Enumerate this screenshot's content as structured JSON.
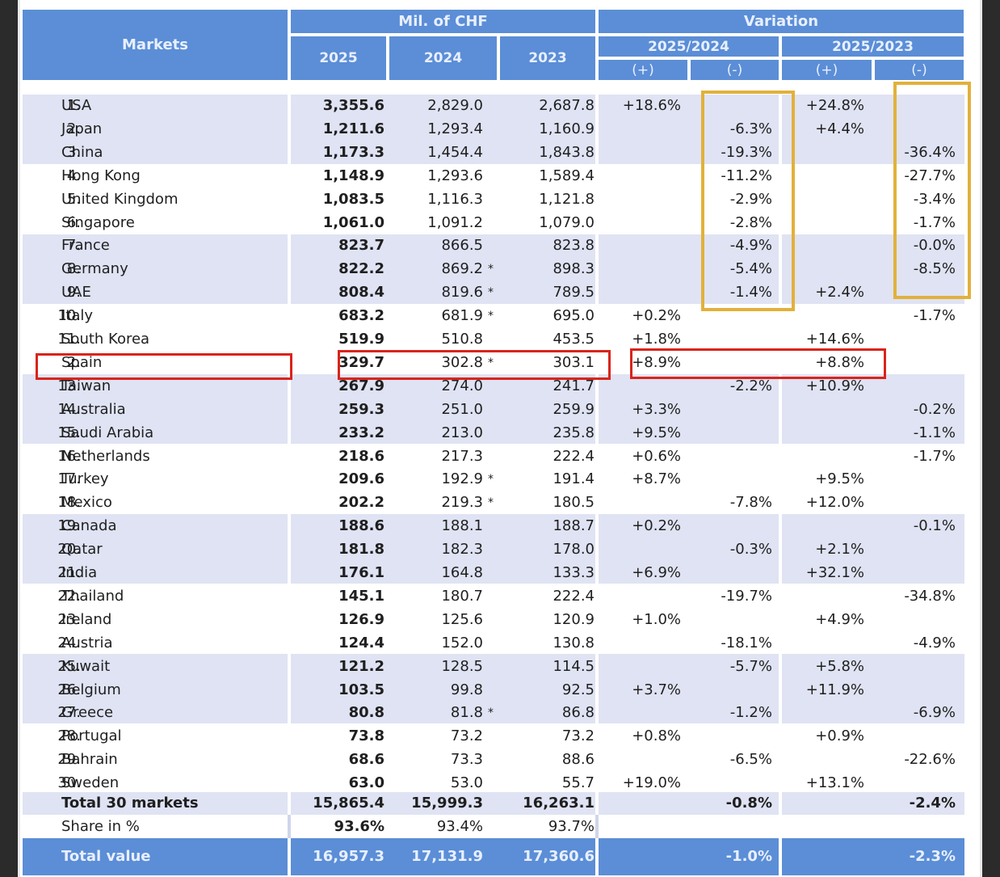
{
  "header": {
    "markets": "Markets",
    "mil_chf": "Mil. of CHF",
    "variation": "Variation",
    "years": [
      "2025",
      "2024",
      "2023"
    ],
    "period_1": "2025/2024",
    "period_2": "2025/2023",
    "plus": "(+)",
    "minus": "(-)"
  },
  "chart_data": {
    "type": "table",
    "title": "Markets — Mil. of CHF",
    "columns": [
      "Markets",
      "2025",
      "2024",
      "2023",
      "2025/2024 (+)",
      "2025/2024 (-)",
      "2025/2023 (+)",
      "2025/2023 (-)"
    ],
    "rows": [
      {
        "rank": "1.",
        "name": "USA",
        "y2025": "3,355.6",
        "y2024": "2,829.0",
        "star": "",
        "y2023": "2,687.8",
        "p1": "+18.6%",
        "m1": "",
        "p2": "+24.8%",
        "m2": ""
      },
      {
        "rank": "2.",
        "name": "Japan",
        "y2025": "1,211.6",
        "y2024": "1,293.4",
        "star": "",
        "y2023": "1,160.9",
        "p1": "",
        "m1": "-6.3%",
        "p2": "+4.4%",
        "m2": ""
      },
      {
        "rank": "3.",
        "name": "China",
        "y2025": "1,173.3",
        "y2024": "1,454.4",
        "star": "",
        "y2023": "1,843.8",
        "p1": "",
        "m1": "-19.3%",
        "p2": "",
        "m2": "-36.4%"
      },
      {
        "rank": "4.",
        "name": "Hong Kong",
        "y2025": "1,148.9",
        "y2024": "1,293.6",
        "star": "",
        "y2023": "1,589.4",
        "p1": "",
        "m1": "-11.2%",
        "p2": "",
        "m2": "-27.7%"
      },
      {
        "rank": "5.",
        "name": "United Kingdom",
        "y2025": "1,083.5",
        "y2024": "1,116.3",
        "star": "",
        "y2023": "1,121.8",
        "p1": "",
        "m1": "-2.9%",
        "p2": "",
        "m2": "-3.4%"
      },
      {
        "rank": "6.",
        "name": "Singapore",
        "y2025": "1,061.0",
        "y2024": "1,091.2",
        "star": "",
        "y2023": "1,079.0",
        "p1": "",
        "m1": "-2.8%",
        "p2": "",
        "m2": "-1.7%"
      },
      {
        "rank": "7.",
        "name": "France",
        "y2025": "823.7",
        "y2024": "866.5",
        "star": "",
        "y2023": "823.8",
        "p1": "",
        "m1": "-4.9%",
        "p2": "",
        "m2": "-0.0%"
      },
      {
        "rank": "8.",
        "name": "Germany",
        "y2025": "822.2",
        "y2024": "869.2",
        "star": "*",
        "y2023": "898.3",
        "p1": "",
        "m1": "-5.4%",
        "p2": "",
        "m2": "-8.5%"
      },
      {
        "rank": "9.",
        "name": "UAE",
        "y2025": "808.4",
        "y2024": "819.6",
        "star": "*",
        "y2023": "789.5",
        "p1": "",
        "m1": "-1.4%",
        "p2": "+2.4%",
        "m2": ""
      },
      {
        "rank": "10.",
        "name": "Italy",
        "y2025": "683.2",
        "y2024": "681.9",
        "star": "*",
        "y2023": "695.0",
        "p1": "+0.2%",
        "m1": "",
        "p2": "",
        "m2": "-1.7%"
      },
      {
        "rank": "11.",
        "name": "South Korea",
        "y2025": "519.9",
        "y2024": "510.8",
        "star": "",
        "y2023": "453.5",
        "p1": "+1.8%",
        "m1": "",
        "p2": "+14.6%",
        "m2": ""
      },
      {
        "rank": "2.",
        "name": "Spain",
        "y2025": "329.7",
        "y2024": "302.8",
        "star": "*",
        "y2023": "303.1",
        "p1": "+8.9%",
        "m1": "",
        "p2": "+8.8%",
        "m2": ""
      },
      {
        "rank": "13.",
        "name": "Taiwan",
        "y2025": "267.9",
        "y2024": "274.0",
        "star": "",
        "y2023": "241.7",
        "p1": "",
        "m1": "-2.2%",
        "p2": "+10.9%",
        "m2": ""
      },
      {
        "rank": "14.",
        "name": "Australia",
        "y2025": "259.3",
        "y2024": "251.0",
        "star": "",
        "y2023": "259.9",
        "p1": "+3.3%",
        "m1": "",
        "p2": "",
        "m2": "-0.2%"
      },
      {
        "rank": "15.",
        "name": "Saudi Arabia",
        "y2025": "233.2",
        "y2024": "213.0",
        "star": "",
        "y2023": "235.8",
        "p1": "+9.5%",
        "m1": "",
        "p2": "",
        "m2": "-1.1%"
      },
      {
        "rank": "16.",
        "name": "Netherlands",
        "y2025": "218.6",
        "y2024": "217.3",
        "star": "",
        "y2023": "222.4",
        "p1": "+0.6%",
        "m1": "",
        "p2": "",
        "m2": "-1.7%"
      },
      {
        "rank": "17.",
        "name": "Turkey",
        "y2025": "209.6",
        "y2024": "192.9",
        "star": "*",
        "y2023": "191.4",
        "p1": "+8.7%",
        "m1": "",
        "p2": "+9.5%",
        "m2": ""
      },
      {
        "rank": "18.",
        "name": "Mexico",
        "y2025": "202.2",
        "y2024": "219.3",
        "star": "*",
        "y2023": "180.5",
        "p1": "",
        "m1": "-7.8%",
        "p2": "+12.0%",
        "m2": ""
      },
      {
        "rank": "19.",
        "name": "Canada",
        "y2025": "188.6",
        "y2024": "188.1",
        "star": "",
        "y2023": "188.7",
        "p1": "+0.2%",
        "m1": "",
        "p2": "",
        "m2": "-0.1%"
      },
      {
        "rank": "20.",
        "name": "Qatar",
        "y2025": "181.8",
        "y2024": "182.3",
        "star": "",
        "y2023": "178.0",
        "p1": "",
        "m1": "-0.3%",
        "p2": "+2.1%",
        "m2": ""
      },
      {
        "rank": "21.",
        "name": "India",
        "y2025": "176.1",
        "y2024": "164.8",
        "star": "",
        "y2023": "133.3",
        "p1": "+6.9%",
        "m1": "",
        "p2": "+32.1%",
        "m2": ""
      },
      {
        "rank": "22.",
        "name": "Thailand",
        "y2025": "145.1",
        "y2024": "180.7",
        "star": "",
        "y2023": "222.4",
        "p1": "",
        "m1": "-19.7%",
        "p2": "",
        "m2": "-34.8%"
      },
      {
        "rank": "23.",
        "name": "Ireland",
        "y2025": "126.9",
        "y2024": "125.6",
        "star": "",
        "y2023": "120.9",
        "p1": "+1.0%",
        "m1": "",
        "p2": "+4.9%",
        "m2": ""
      },
      {
        "rank": "24.",
        "name": "Austria",
        "y2025": "124.4",
        "y2024": "152.0",
        "star": "",
        "y2023": "130.8",
        "p1": "",
        "m1": "-18.1%",
        "p2": "",
        "m2": "-4.9%"
      },
      {
        "rank": "25.",
        "name": "Kuwait",
        "y2025": "121.2",
        "y2024": "128.5",
        "star": "",
        "y2023": "114.5",
        "p1": "",
        "m1": "-5.7%",
        "p2": "+5.8%",
        "m2": ""
      },
      {
        "rank": "26.",
        "name": "Belgium",
        "y2025": "103.5",
        "y2024": "99.8",
        "star": "",
        "y2023": "92.5",
        "p1": "+3.7%",
        "m1": "",
        "p2": "+11.9%",
        "m2": ""
      },
      {
        "rank": "27.",
        "name": "Greece",
        "y2025": "80.8",
        "y2024": "81.8",
        "star": "*",
        "y2023": "86.8",
        "p1": "",
        "m1": "-1.2%",
        "p2": "",
        "m2": "-6.9%"
      },
      {
        "rank": "28.",
        "name": "Portugal",
        "y2025": "73.8",
        "y2024": "73.2",
        "star": "",
        "y2023": "73.2",
        "p1": "+0.8%",
        "m1": "",
        "p2": "+0.9%",
        "m2": ""
      },
      {
        "rank": "29.",
        "name": "Bahrain",
        "y2025": "68.6",
        "y2024": "73.3",
        "star": "",
        "y2023": "88.6",
        "p1": "",
        "m1": "-6.5%",
        "p2": "",
        "m2": "-22.6%"
      },
      {
        "rank": "30.",
        "name": "Sweden",
        "y2025": "63.0",
        "y2024": "53.0",
        "star": "",
        "y2023": "55.7",
        "p1": "+19.0%",
        "m1": "",
        "p2": "+13.1%",
        "m2": ""
      }
    ],
    "totals": {
      "total30": {
        "label": "Total 30 markets",
        "y2025": "15,865.4",
        "y2024": "15,999.3",
        "y2023": "16,263.1",
        "v1": "-0.8%",
        "v2": "-2.4%"
      },
      "share": {
        "label": "Share in %",
        "y2025": "93.6%",
        "y2024": "93.4%",
        "y2023": "93.7%"
      },
      "total_value": {
        "label": "Total value",
        "y2025": "16,957.3",
        "y2024": "17,131.9",
        "y2023": "17,360.6",
        "v1": "-1.0%",
        "v2": "-2.3%"
      }
    }
  },
  "colors": {
    "header_bg": "#5b8ed6",
    "band_bg": "#dfe3f3",
    "highlight_yellow": "#e2b13c",
    "highlight_red": "#d9241b"
  }
}
